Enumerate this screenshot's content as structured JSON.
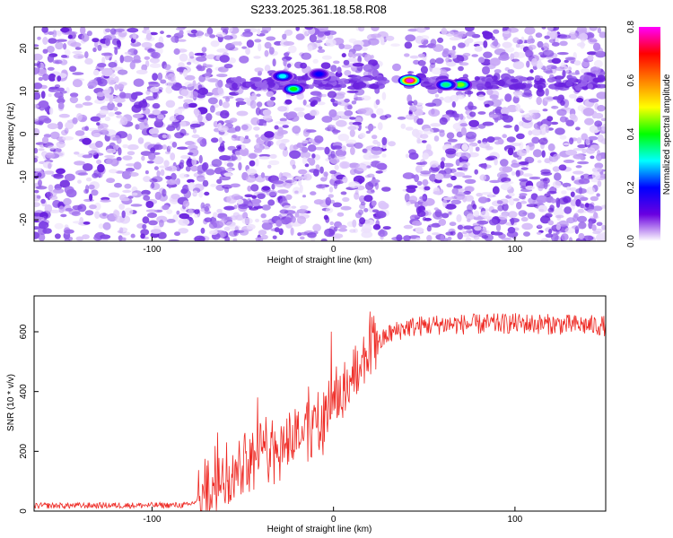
{
  "title": "S233.2025.361.18.58.R08",
  "chart_data": [
    {
      "type": "heatmap",
      "xlabel": "Height of straight line (km)",
      "ylabel": "Frequency (Hz)",
      "xlim": [
        -165,
        150
      ],
      "ylim": [
        -25,
        25
      ],
      "xticks": [
        -100,
        0,
        100
      ],
      "yticks": [
        -20,
        -10,
        0,
        10,
        20
      ],
      "colorbar": {
        "label": "Normalized spectral amplitude",
        "range": [
          0,
          0.8
        ],
        "ticks": [
          0.0,
          0.2,
          0.4,
          0.6,
          0.8
        ],
        "colormap": [
          "#ffffff",
          "#6a00e0",
          "#0000ff",
          "#00ffff",
          "#00ff00",
          "#ffff00",
          "#ff8000",
          "#ff0000",
          "#ff00ff"
        ]
      },
      "signal_band_hz": 12,
      "data_gap_km": [
        28,
        40
      ],
      "peaks": [
        {
          "height_km": 42,
          "freq_hz": 12.5,
          "amp": 0.8
        },
        {
          "height_km": 70,
          "freq_hz": 11.5,
          "amp": 0.45
        },
        {
          "height_km": 62,
          "freq_hz": 11.5,
          "amp": 0.35
        },
        {
          "height_km": -22,
          "freq_hz": 10.5,
          "amp": 0.4
        },
        {
          "height_km": -28,
          "freq_hz": 13.5,
          "amp": 0.3
        },
        {
          "height_km": -8,
          "freq_hz": 14,
          "amp": 0.2
        }
      ]
    },
    {
      "type": "line",
      "series_name": "SNR",
      "color": "#ee2a24",
      "xlabel": "Height of straight line (km)",
      "ylabel": "SNR (10 * v/v)",
      "xlim": [
        -165,
        150
      ],
      "ylim": [
        0,
        720
      ],
      "xticks": [
        -100,
        0,
        100
      ],
      "yticks": [
        0,
        200,
        400,
        600
      ],
      "profile": {
        "x": [
          -165,
          -80,
          -70,
          -60,
          -50,
          -40,
          -30,
          -20,
          -10,
          0,
          10,
          20,
          30,
          40,
          60,
          80,
          100,
          120,
          150
        ],
        "y": [
          18,
          20,
          50,
          110,
          150,
          190,
          230,
          260,
          290,
          360,
          440,
          530,
          590,
          615,
          625,
          625,
          628,
          625,
          620
        ]
      }
    }
  ]
}
